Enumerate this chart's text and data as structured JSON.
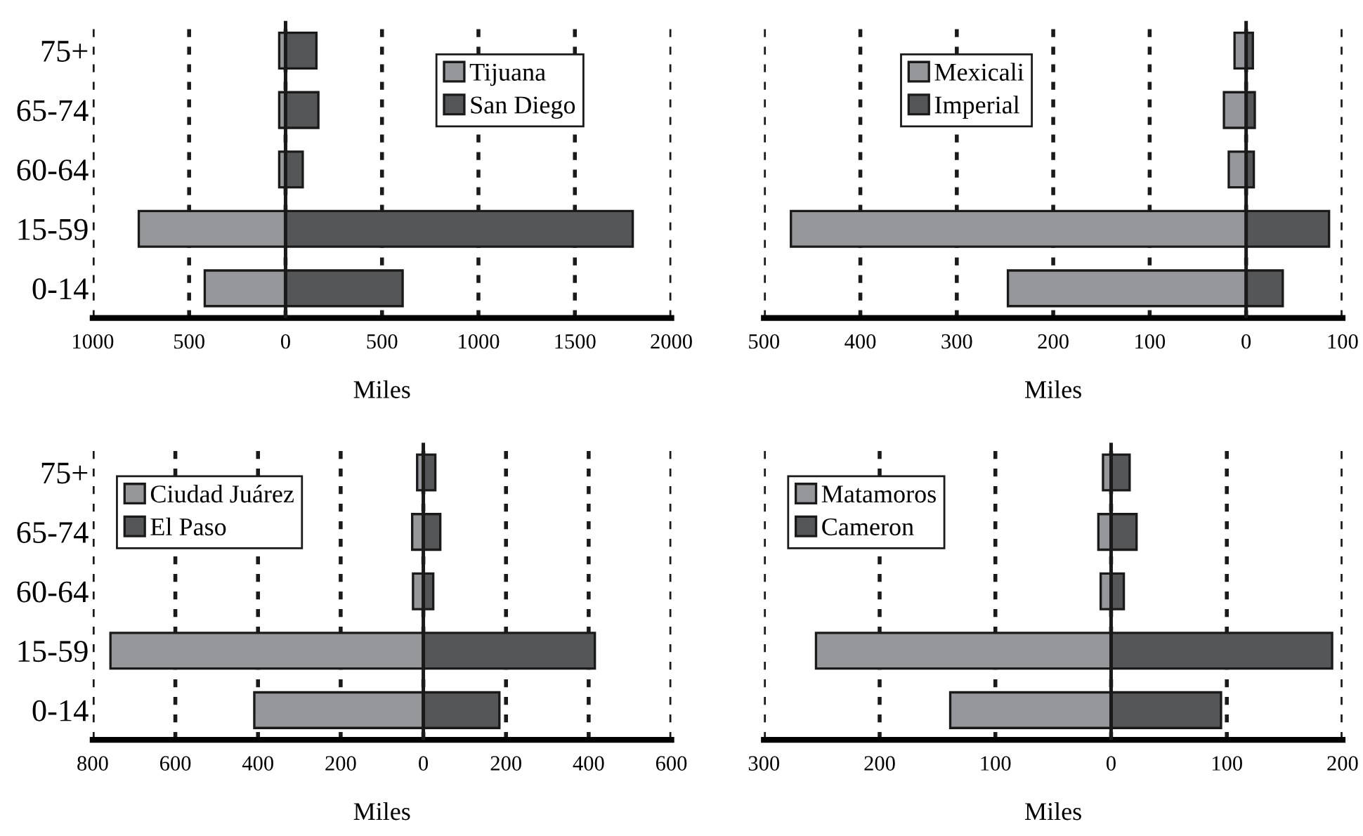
{
  "chart_data": [
    {
      "type": "bar",
      "orientation": "horizontal",
      "categories": [
        "75+",
        "65-74",
        "60-64",
        "15-59",
        "0-14"
      ],
      "xlabel": "Miles",
      "stacked": true,
      "xlim": [
        -1000,
        2000
      ],
      "xticks": [
        {
          "value": -1000,
          "label": "1000"
        },
        {
          "value": -500,
          "label": "500"
        },
        0,
        500,
        1000,
        1500,
        2000
      ],
      "grid": "x",
      "legend": "top right",
      "series": [
        {
          "name": "Tijuana",
          "color": "#96979b",
          "values": [
            -33,
            -33,
            -33,
            -761,
            -419
          ]
        },
        {
          "name": "San Diego",
          "color": "#555658",
          "values": [
            160,
            170,
            89,
            1800,
            607
          ]
        }
      ]
    },
    {
      "type": "bar",
      "orientation": "horizontal",
      "categories": [
        null,
        null,
        null,
        null,
        null
      ],
      "xlabel": "Miles",
      "stacked": true,
      "xlim": [
        -500,
        100
      ],
      "xticks": [
        {
          "value": -500,
          "label": "500"
        },
        {
          "value": -400,
          "label": "400"
        },
        {
          "value": -300,
          "label": "300"
        },
        {
          "value": -200,
          "label": "200"
        },
        {
          "value": -100,
          "label": "100"
        },
        0,
        100
      ],
      "grid": "x",
      "legend": "top",
      "tick_labels": "x",
      "series": [
        {
          "name": "Mexicali",
          "color": "#96979b",
          "values": [
            -12,
            -23,
            -18,
            -472,
            -247
          ]
        },
        {
          "name": "Imperial",
          "color": "#555658",
          "values": [
            7,
            9,
            8,
            86,
            38
          ]
        }
      ]
    },
    {
      "type": "bar",
      "orientation": "horizontal",
      "categories": [
        "75+",
        "65-74",
        "60-64",
        "15-59",
        "0-14"
      ],
      "xlabel": "Miles",
      "stacked": true,
      "xlim": [
        -800,
        600
      ],
      "xticks": [
        {
          "value": -800,
          "label": "800"
        },
        {
          "value": -600,
          "label": "600"
        },
        {
          "value": -400,
          "label": "400"
        },
        {
          "value": -200,
          "label": "200"
        },
        0,
        200,
        400,
        600
      ],
      "grid": "x",
      "legend": "top left",
      "series": [
        {
          "name": "Ciudad Juárez",
          "color": "#96979b",
          "values": [
            -15,
            -27,
            -25,
            -757,
            -409
          ]
        },
        {
          "name": "El Paso",
          "color": "#555658",
          "values": [
            29,
            41,
            24,
            415,
            184
          ]
        }
      ]
    },
    {
      "type": "bar",
      "orientation": "horizontal",
      "categories": [
        null,
        null,
        null,
        null,
        null
      ],
      "xlabel": "Miles",
      "stacked": true,
      "xlim": [
        -300,
        200
      ],
      "xticks": [
        {
          "value": -300,
          "label": "300"
        },
        {
          "value": -200,
          "label": "200"
        },
        {
          "value": -100,
          "label": "100"
        },
        0,
        100,
        200
      ],
      "grid": "x",
      "legend": "top left",
      "tick_labels": "x",
      "series": [
        {
          "name": "Matamoros",
          "color": "#96979b",
          "values": [
            -7,
            -11,
            -9,
            -255,
            -139
          ]
        },
        {
          "name": "Cameron",
          "color": "#555658",
          "values": [
            16,
            22,
            11,
            191,
            95
          ]
        }
      ]
    }
  ]
}
